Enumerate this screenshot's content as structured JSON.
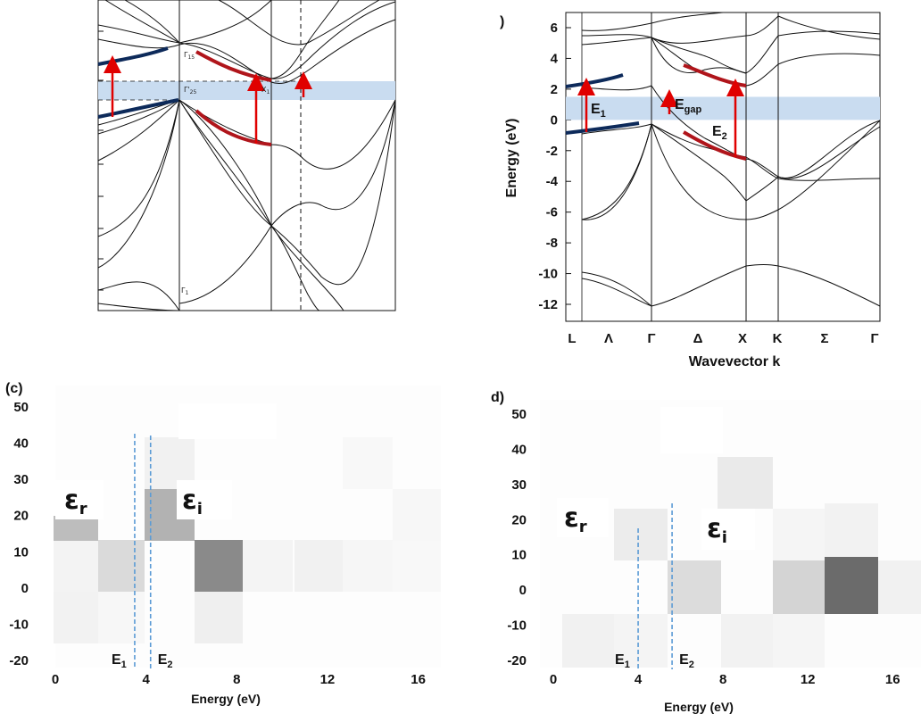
{
  "chart_data": [
    {
      "type": "line",
      "panel": "a",
      "panel_label": "",
      "points": [
        "Γ16",
        "Γ'25",
        "X1",
        "Γ1"
      ],
      "bands_shown": true
    },
    {
      "type": "line",
      "panel": "b",
      "panel_label": ")",
      "ylabel": "Energy (eV)",
      "ylabel_visible": "Energy (eV)",
      "xlabel": "Wavevector k",
      "ylim": [
        -13,
        7
      ],
      "yticks": [
        "6",
        "4",
        "2",
        "0",
        "-2",
        "-4",
        "-6",
        "-8",
        "-10",
        "-12"
      ],
      "xticks": [
        "L",
        "Λ",
        "Γ",
        "Δ",
        "X",
        "K",
        "Σ",
        "Γ"
      ],
      "annotations": {
        "E1": {
          "base": "E",
          "sub": "1"
        },
        "Egap": {
          "base": "E",
          "sub": "gap"
        },
        "E2": {
          "base": "E",
          "sub": "2"
        }
      },
      "gap_band": [
        0,
        1.5
      ]
    },
    {
      "type": "heatmap",
      "panel": "c",
      "panel_label": "(c)",
      "xlabel": "Energy (eV)",
      "xticks": [
        "0",
        "4",
        "8",
        "12",
        "16"
      ],
      "xlim": [
        0,
        17
      ],
      "yticks": [
        "50",
        "40",
        "30",
        "20",
        "10",
        "0",
        "-10",
        "-20"
      ],
      "ylim": [
        -20,
        50
      ],
      "legend": {
        "eps_r": {
          "base": "ε",
          "sub": "r"
        },
        "eps_i": {
          "base": "ε",
          "sub": "i"
        }
      },
      "markers": [
        {
          "label": {
            "base": "E",
            "sub": "1"
          },
          "energy": 3.5
        },
        {
          "label": {
            "base": "E",
            "sub": "2"
          },
          "energy": 4.2
        }
      ]
    },
    {
      "type": "heatmap",
      "panel": "d",
      "panel_label": "d)",
      "xlabel": "Energy (eV)",
      "xticks": [
        "0",
        "4",
        "8",
        "12",
        "16"
      ],
      "xlim": [
        0,
        17
      ],
      "yticks": [
        "50",
        "40",
        "30",
        "20",
        "10",
        "0",
        "-10",
        "-20"
      ],
      "ylim": [
        -20,
        50
      ],
      "legend": {
        "eps_r": {
          "base": "ε",
          "sub": "r"
        },
        "eps_i": {
          "base": "ε",
          "sub": "i"
        }
      },
      "markers": [
        {
          "label": {
            "base": "E",
            "sub": "1"
          },
          "energy": 4.0
        },
        {
          "label": {
            "base": "E",
            "sub": "2"
          },
          "energy": 5.6
        }
      ]
    }
  ],
  "colors": {
    "gap_band": "#c9dcf0",
    "valence_highlight": "#0d2a5a",
    "transition_highlight": "#b0151b",
    "arrow": "#e00000",
    "marker_line": "#5b9bd5",
    "heat_dark": "#6a6a6a",
    "heat_light": "#f4f4f4"
  }
}
